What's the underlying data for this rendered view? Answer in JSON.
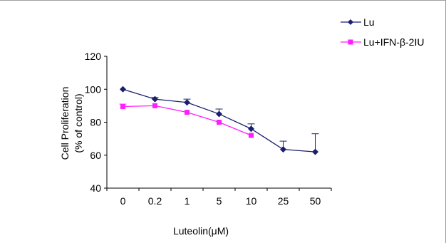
{
  "colors": {
    "lu": "#1a1f6e",
    "lu_ifn": "#ff1eff",
    "axis": "#000000"
  },
  "chart_data": {
    "type": "line",
    "xlabel": "Luteolin(μM)",
    "ylabel_line1": "Cell Proliferation",
    "ylabel_line2": "(% of control)",
    "categories": [
      "0",
      "0.2",
      "1",
      "5",
      "10",
      "25",
      "50"
    ],
    "ylim": [
      40,
      120
    ],
    "yticks": [
      40,
      60,
      80,
      100,
      120
    ],
    "legend_position": "top-right",
    "grid": false,
    "series": [
      {
        "name": "Lu",
        "marker": "diamond",
        "values": [
          100,
          94,
          92,
          85,
          76,
          63.5,
          62
        ],
        "error_upper": [
          0,
          1,
          2,
          3,
          3,
          5,
          11
        ]
      },
      {
        "name": "Lu+IFN-β-2IU",
        "marker": "square",
        "values": [
          89.5,
          90,
          86,
          80,
          72,
          null,
          null
        ],
        "error_upper": [
          1.5,
          0,
          0,
          0,
          0,
          null,
          null
        ]
      }
    ]
  }
}
